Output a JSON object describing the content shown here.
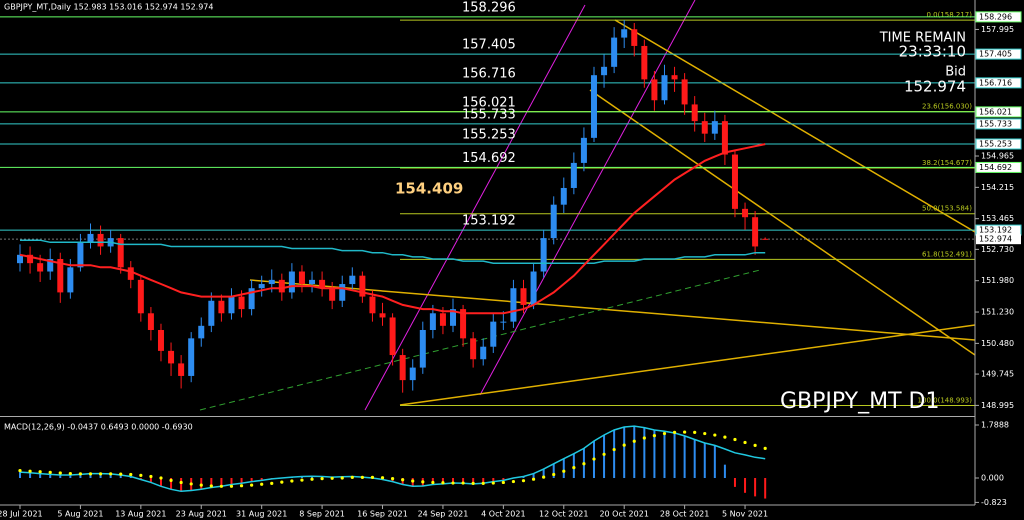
{
  "header": {
    "symbol_info": "GBPJPY_MT,Daily  152.983 153.016 152.974 152.974",
    "time_remain_label": "TIME REMAIN",
    "time_remain": "23:33:10",
    "bid_label": "Bid",
    "bid": 152.974,
    "watermark": "GBPJPY_MT D1"
  },
  "chart_data": [
    {
      "type": "candlestick",
      "categories": [
        "28 Jul 2021",
        null,
        null,
        null,
        null,
        null,
        "5 Aug 2021",
        null,
        null,
        null,
        null,
        null,
        "13 Aug 2021",
        null,
        null,
        null,
        null,
        null,
        "23 Aug 2021",
        null,
        null,
        null,
        null,
        null,
        "31 Aug 2021",
        null,
        null,
        null,
        null,
        null,
        "8 Sep 2021",
        null,
        null,
        null,
        null,
        null,
        "16 Sep 2021",
        null,
        null,
        null,
        null,
        null,
        "24 Sep 2021",
        null,
        null,
        null,
        null,
        null,
        "4 Oct 2021",
        null,
        null,
        null,
        null,
        null,
        "12 Oct 2021",
        null,
        null,
        null,
        null,
        null,
        "20 Oct 2021",
        null,
        null,
        null,
        null,
        null,
        "28 Oct 2021",
        null,
        null,
        null,
        null,
        null,
        "5 Nov 2021",
        null,
        null
      ],
      "open": [
        152.4,
        152.6,
        152.4,
        152.2,
        152.5,
        151.7,
        152.3,
        152.9,
        153.1,
        152.8,
        153.0,
        152.3,
        152.0,
        151.2,
        150.8,
        150.3,
        150.0,
        149.7,
        150.6,
        150.9,
        151.5,
        151.2,
        151.6,
        151.3,
        151.8,
        151.9,
        152.0,
        151.7,
        152.2,
        151.9,
        152.0,
        151.8,
        151.5,
        151.9,
        152.1,
        151.6,
        151.2,
        151.1,
        150.2,
        149.6,
        149.9,
        150.8,
        151.2,
        150.9,
        151.3,
        150.6,
        150.1,
        150.4,
        151.0,
        151.0,
        151.8,
        151.4,
        152.2,
        153.0,
        153.8,
        154.2,
        154.8,
        155.4,
        156.9,
        157.1,
        157.8,
        158.0,
        157.6,
        156.8,
        156.3,
        156.9,
        156.8,
        156.2,
        155.8,
        155.5,
        155.8,
        155.0,
        153.7,
        153.5,
        152.983
      ],
      "high": [
        152.85,
        152.8,
        152.6,
        152.75,
        152.65,
        152.5,
        153.1,
        153.35,
        153.3,
        153.2,
        153.1,
        152.45,
        152.1,
        151.35,
        150.95,
        150.5,
        150.2,
        150.75,
        151.1,
        151.7,
        151.65,
        151.8,
        151.75,
        152.0,
        152.1,
        152.25,
        152.15,
        152.4,
        152.35,
        152.2,
        152.2,
        151.95,
        152.1,
        152.3,
        152.2,
        151.75,
        151.45,
        151.2,
        150.35,
        150.1,
        151.0,
        151.4,
        151.35,
        151.55,
        151.4,
        150.75,
        150.6,
        151.2,
        151.25,
        152.0,
        152.0,
        152.4,
        153.2,
        154.0,
        154.45,
        155.05,
        155.65,
        157.1,
        157.4,
        158.05,
        158.22,
        158.15,
        157.75,
        157.0,
        157.15,
        157.1,
        156.95,
        156.4,
        156.0,
        156.05,
        155.95,
        155.1,
        153.85,
        153.65,
        153.016
      ],
      "low": [
        152.2,
        152.15,
        151.95,
        152.0,
        151.45,
        151.55,
        152.2,
        152.75,
        152.6,
        152.65,
        152.15,
        151.8,
        151.0,
        150.55,
        150.05,
        149.7,
        149.4,
        149.55,
        150.4,
        150.75,
        151.0,
        151.05,
        151.1,
        151.15,
        151.6,
        151.7,
        151.5,
        151.55,
        151.7,
        151.7,
        151.6,
        151.3,
        151.35,
        151.75,
        151.45,
        151.0,
        150.9,
        149.95,
        149.3,
        149.35,
        149.75,
        150.6,
        150.7,
        150.75,
        150.4,
        149.9,
        149.95,
        150.25,
        150.8,
        150.85,
        151.2,
        151.3,
        152.05,
        152.85,
        153.6,
        154.05,
        154.6,
        155.3,
        156.6,
        156.95,
        157.55,
        157.35,
        156.6,
        156.05,
        156.2,
        156.5,
        155.95,
        155.55,
        155.3,
        155.35,
        154.75,
        153.5,
        153.2,
        152.6,
        152.974
      ],
      "close": [
        152.6,
        152.4,
        152.2,
        152.5,
        151.7,
        152.3,
        152.9,
        153.1,
        152.8,
        153.0,
        152.3,
        152.0,
        151.2,
        150.8,
        150.3,
        150.0,
        149.7,
        150.6,
        150.9,
        151.5,
        151.2,
        151.6,
        151.3,
        151.8,
        151.9,
        152.0,
        151.7,
        152.2,
        151.9,
        152.0,
        151.8,
        151.5,
        151.9,
        152.1,
        151.6,
        151.2,
        151.1,
        150.2,
        149.6,
        149.9,
        150.8,
        151.2,
        150.9,
        151.3,
        150.6,
        150.1,
        150.4,
        151.0,
        151.0,
        151.8,
        151.4,
        152.2,
        153.0,
        153.8,
        154.2,
        154.8,
        155.4,
        156.9,
        157.1,
        157.8,
        158.0,
        157.6,
        156.8,
        156.3,
        156.9,
        156.8,
        156.2,
        155.8,
        155.5,
        155.8,
        155.0,
        153.7,
        153.5,
        152.8,
        152.974
      ],
      "up_color": "#2d8cf0",
      "down_color": "#ff1a1a",
      "lines": [
        {
          "color": "#20b8c8",
          "values": [
            152.95,
            152.95,
            152.95,
            152.9,
            152.9,
            152.9,
            152.9,
            152.9,
            152.9,
            152.9,
            152.85,
            152.85,
            152.85,
            152.85,
            152.85,
            152.8,
            152.8,
            152.8,
            152.8,
            152.8,
            152.8,
            152.8,
            152.8,
            152.8,
            152.8,
            152.8,
            152.8,
            152.75,
            152.75,
            152.75,
            152.75,
            152.75,
            152.7,
            152.7,
            152.7,
            152.65,
            152.65,
            152.6,
            152.6,
            152.55,
            152.55,
            152.5,
            152.5,
            152.5,
            152.45,
            152.45,
            152.45,
            152.4,
            152.4,
            152.4,
            152.4,
            152.4,
            152.4,
            152.4,
            152.4,
            152.4,
            152.4,
            152.4,
            152.45,
            152.45,
            152.45,
            152.45,
            152.5,
            152.5,
            152.5,
            152.5,
            152.55,
            152.55,
            152.55,
            152.6,
            152.6,
            152.6,
            152.6,
            152.65,
            152.65
          ]
        },
        {
          "color": "#ff2020",
          "values": [
            152.6,
            152.55,
            152.5,
            152.45,
            152.4,
            152.35,
            152.35,
            152.35,
            152.3,
            152.3,
            152.25,
            152.2,
            152.1,
            152.0,
            151.9,
            151.8,
            151.7,
            151.65,
            151.6,
            151.6,
            151.6,
            151.6,
            151.65,
            151.7,
            151.75,
            151.8,
            151.8,
            151.85,
            151.85,
            151.85,
            151.8,
            151.8,
            151.8,
            151.75,
            151.7,
            151.65,
            151.6,
            151.5,
            151.4,
            151.35,
            151.3,
            151.3,
            151.25,
            151.25,
            151.2,
            151.2,
            151.2,
            151.2,
            151.2,
            151.25,
            151.3,
            151.4,
            151.55,
            151.7,
            151.9,
            152.1,
            152.35,
            152.6,
            152.85,
            153.1,
            153.35,
            153.6,
            153.8,
            154.0,
            154.2,
            154.4,
            154.55,
            154.7,
            154.85,
            154.95,
            155.05,
            155.1,
            155.15,
            155.2,
            155.25
          ]
        }
      ],
      "levels": [
        {
          "value": 158.296,
          "color": "#66ff66"
        },
        {
          "value": 157.405,
          "color": "#33cccc"
        },
        {
          "value": 156.716,
          "color": "#33cccc"
        },
        {
          "value": 156.021,
          "color": "#66ff66"
        },
        {
          "value": 155.733,
          "color": "#33cccc"
        },
        {
          "value": 155.253,
          "color": "#33cccc"
        },
        {
          "value": 154.692,
          "color": "#66ff66"
        },
        {
          "value": 153.192,
          "color": "#33cccc"
        }
      ],
      "annotation_price": 154.409,
      "fib_color": "#b8c820",
      "fib": [
        {
          "value": 158.217,
          "label": "0.0(158.217)"
        },
        {
          "value": 156.03,
          "label": "23.6(156.030)"
        },
        {
          "value": 154.677,
          "label": "38.2(154.677)"
        },
        {
          "value": 153.584,
          "label": "50.0(153.584)"
        },
        {
          "value": 152.491,
          "label": "61.8(152.491)"
        },
        {
          "value": 148.993,
          "label": "100.0(148.993)"
        }
      ],
      "ylim": [
        148.765,
        158.7
      ],
      "yticks": [
        157.995,
        154.965,
        154.215,
        153.465,
        {
          "value": 152.73,
          "label": "152.730"
        },
        {
          "value": 151.98,
          "label": "151.980"
        },
        {
          "value": 151.23,
          "label": "151.230"
        },
        {
          "value": 150.48,
          "label": "150.480"
        },
        149.745,
        148.995
      ]
    },
    {
      "type": "macd",
      "title": "MACD(12,26,9) -0.0437 0.6493 0.0000 -0.6930",
      "histogram": [
        0.2,
        0.18,
        0.15,
        0.12,
        0.1,
        0.1,
        0.12,
        0.15,
        0.15,
        0.14,
        0.1,
        0.05,
        -0.05,
        -0.15,
        -0.28,
        -0.38,
        -0.45,
        -0.42,
        -0.38,
        -0.32,
        -0.28,
        -0.22,
        -0.18,
        -0.12,
        -0.08,
        -0.03,
        0,
        0.03,
        0.05,
        0.06,
        0.05,
        0.03,
        0.04,
        0.05,
        0.03,
        0,
        -0.05,
        -0.12,
        -0.22,
        -0.28,
        -0.27,
        -0.22,
        -0.2,
        -0.17,
        -0.18,
        -0.2,
        -0.18,
        -0.12,
        -0.08,
        0,
        0.05,
        0.15,
        0.3,
        0.48,
        0.65,
        0.82,
        1.0,
        1.25,
        1.45,
        1.62,
        1.72,
        1.75,
        1.7,
        1.62,
        1.58,
        1.52,
        1.42,
        1.3,
        1.18,
        1.1,
        0.45,
        -0.3,
        -0.5,
        -0.62,
        -0.693
      ],
      "main": [
        0.2,
        0.18,
        0.15,
        0.12,
        0.1,
        0.1,
        0.12,
        0.15,
        0.15,
        0.14,
        0.1,
        0.05,
        -0.05,
        -0.15,
        -0.28,
        -0.38,
        -0.45,
        -0.42,
        -0.38,
        -0.32,
        -0.28,
        -0.22,
        -0.18,
        -0.12,
        -0.08,
        -0.03,
        0,
        0.03,
        0.05,
        0.06,
        0.05,
        0.03,
        0.04,
        0.05,
        0.03,
        0,
        -0.05,
        -0.12,
        -0.22,
        -0.28,
        -0.27,
        -0.22,
        -0.2,
        -0.17,
        -0.18,
        -0.2,
        -0.18,
        -0.12,
        -0.08,
        0,
        0.05,
        0.15,
        0.3,
        0.48,
        0.65,
        0.82,
        1.0,
        1.25,
        1.45,
        1.62,
        1.72,
        1.75,
        1.7,
        1.62,
        1.58,
        1.52,
        1.42,
        1.3,
        1.18,
        1.1,
        0.98,
        0.85,
        0.78,
        0.7,
        0.65
      ],
      "signal": [
        0.25,
        0.23,
        0.21,
        0.19,
        0.17,
        0.15,
        0.14,
        0.14,
        0.14,
        0.14,
        0.13,
        0.12,
        0.09,
        0.05,
        0,
        -0.08,
        -0.15,
        -0.2,
        -0.24,
        -0.27,
        -0.28,
        -0.28,
        -0.26,
        -0.24,
        -0.21,
        -0.18,
        -0.14,
        -0.1,
        -0.07,
        -0.04,
        -0.02,
        -0.01,
        0,
        0.02,
        0.02,
        0.02,
        0.01,
        -0.02,
        -0.06,
        -0.1,
        -0.13,
        -0.15,
        -0.16,
        -0.17,
        -0.17,
        -0.18,
        -0.18,
        -0.17,
        -0.15,
        -0.12,
        -0.09,
        -0.04,
        0.03,
        0.12,
        0.23,
        0.35,
        0.48,
        0.64,
        0.8,
        0.96,
        1.11,
        1.24,
        1.35,
        1.43,
        1.5,
        1.54,
        1.55,
        1.54,
        1.5,
        1.45,
        1.38,
        1.3,
        1.2,
        1.1,
        1.0
      ],
      "pos_color": "#2d8cf0",
      "neg_color": "#ff1a1a",
      "main_color": "#20c8e0",
      "signal_color": "#ffff00",
      "ylim": [
        -0.911,
        2.025
      ],
      "yticks": [
        1.7888,
        {
          "value": 0,
          "label": "0.000"
        },
        -0.823
      ]
    }
  ]
}
